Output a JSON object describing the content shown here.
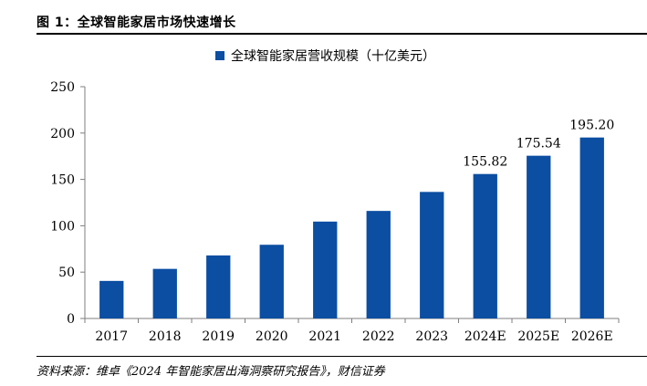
{
  "figure": {
    "title": "图 1：全球智能家居市场快速增长",
    "source": "资料来源：维卓《2024 年智能家居出海洞察研究报告》，财信证券"
  },
  "chart_data": {
    "type": "bar",
    "categories": [
      "2017",
      "2018",
      "2019",
      "2020",
      "2021",
      "2022",
      "2023",
      "2024E",
      "2025E",
      "2026E"
    ],
    "series": [
      {
        "name": "全球智能家居营收规模（十亿美元）",
        "values": [
          40.5,
          53.5,
          68,
          79.5,
          104.5,
          116,
          136.5,
          155.82,
          175.54,
          195.2
        ],
        "color": "#0b4ea2"
      }
    ],
    "data_labels": [
      "",
      "",
      "",
      "",
      "",
      "",
      "",
      "155.82",
      "175.54",
      "195.20"
    ],
    "ylim": [
      0,
      250
    ],
    "yticks": [
      "0",
      "50",
      "100",
      "150",
      "200",
      "250"
    ],
    "xlabel": "",
    "ylabel": "",
    "legend_position": "top-center",
    "grid": false
  }
}
